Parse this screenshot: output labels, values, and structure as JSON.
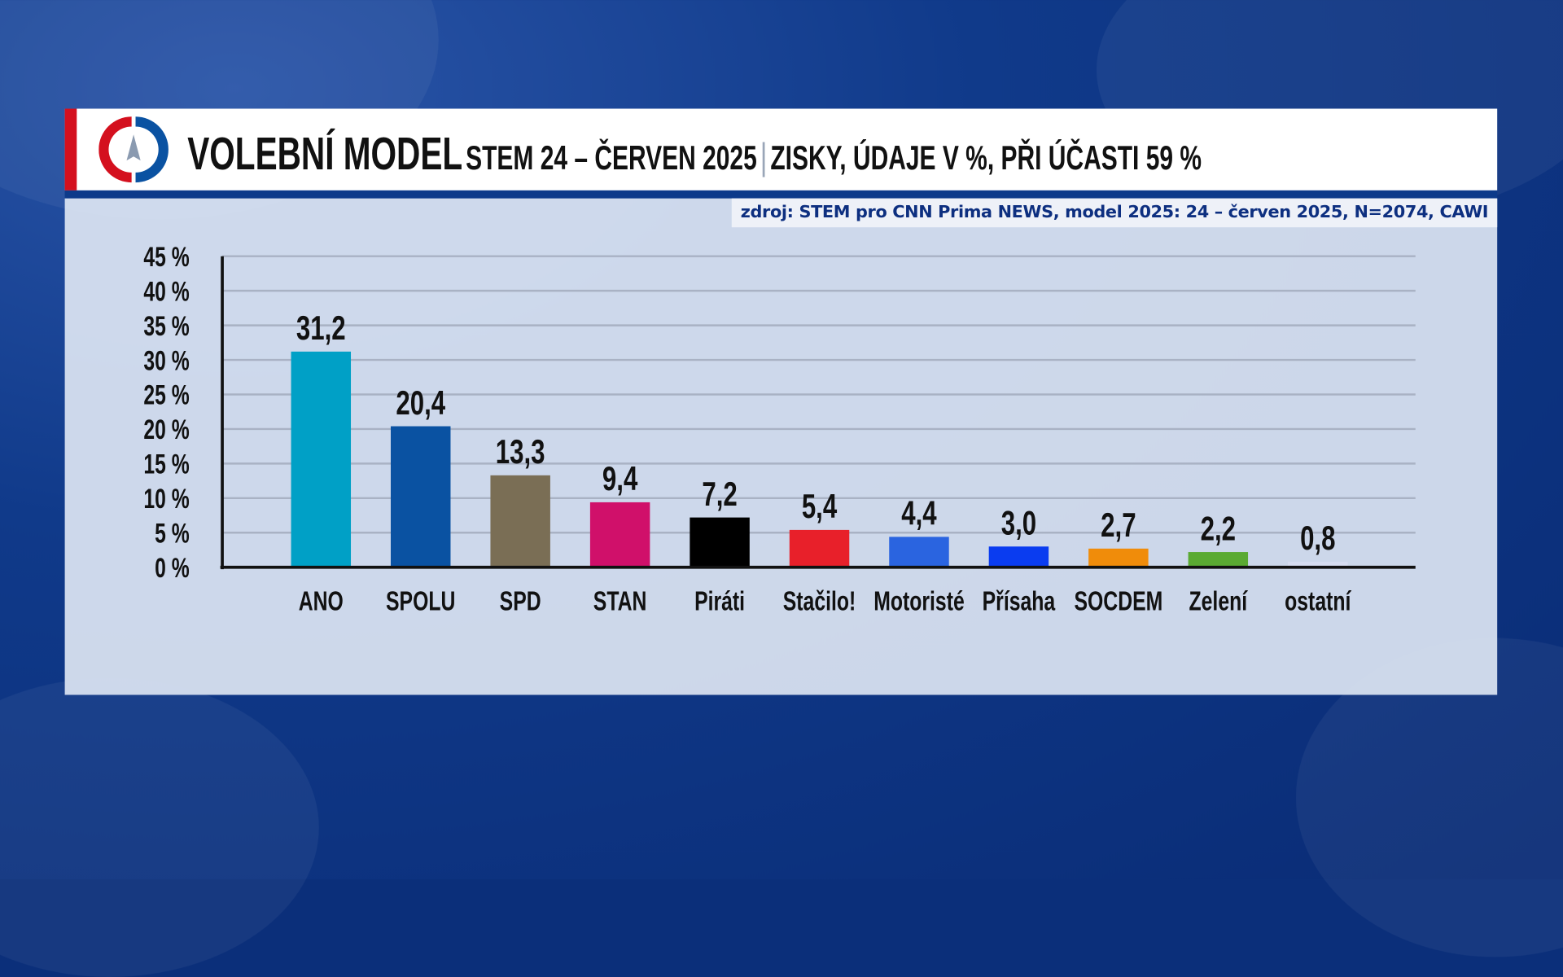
{
  "header": {
    "title": "VOLEBNÍ MODEL",
    "subtitle": "STEM 24 – ČERVEN 2025",
    "separator": "|",
    "detail": "ZISKY, ÚDAJE V %, PŘI ÚČASTI 59 %"
  },
  "source": "zdroj: STEM pro CNN Prima NEWS, model 2025: 24 – červen 2025, N=2074, CAWI",
  "chart_data": {
    "type": "bar",
    "title": "VOLEBNÍ MODEL",
    "categories": [
      "ANO",
      "SPOLU",
      "SPD",
      "STAN",
      "Piráti",
      "Stačilo!",
      "Motoristé",
      "Přísaha",
      "SOCDEM",
      "Zelení",
      "ostatní"
    ],
    "values": [
      31.2,
      20.4,
      13.3,
      9.4,
      7.2,
      5.4,
      4.4,
      3.0,
      2.7,
      2.2,
      0.8
    ],
    "value_labels": [
      "31,2",
      "20,4",
      "13,3",
      "9,4",
      "7,2",
      "5,4",
      "4,4",
      "3,0",
      "2,7",
      "2,2",
      "0,8"
    ],
    "colors": [
      "#00a0c6",
      "#0a52a2",
      "#7a6e55",
      "#d0106a",
      "#000000",
      "#e8202a",
      "#2a64e0",
      "#0a3cf0",
      "#f08c0a",
      "#5aaa32",
      "#d6dcf0"
    ],
    "yticks": [
      "0 %",
      "5 %",
      "10 %",
      "15 %",
      "20 %",
      "25 %",
      "30 %",
      "35 %",
      "40 %",
      "45 %"
    ],
    "ylim": [
      0,
      45
    ],
    "grid": true,
    "xlabel": "",
    "ylabel": ""
  }
}
